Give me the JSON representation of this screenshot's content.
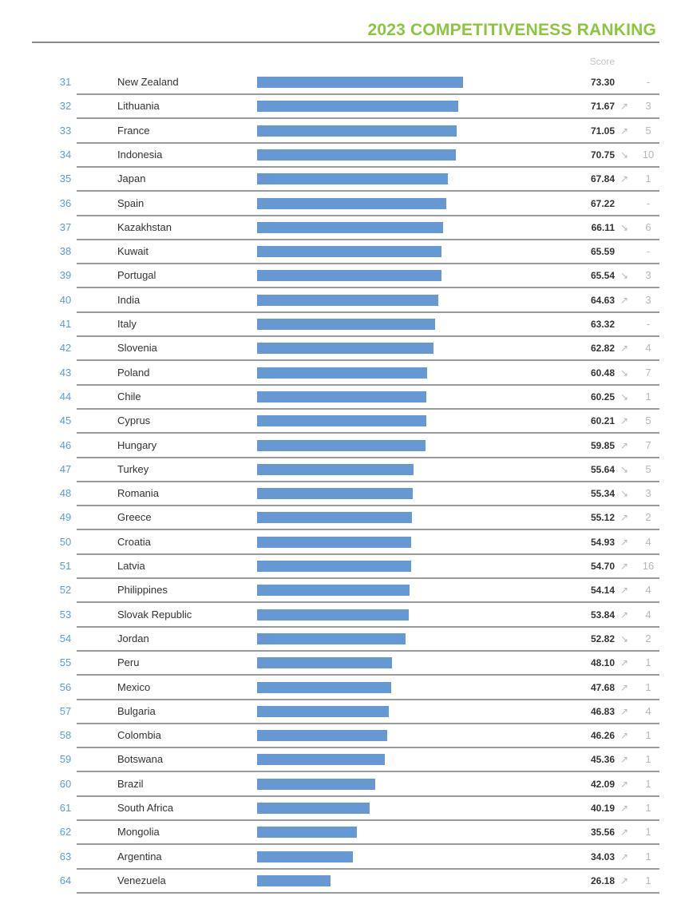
{
  "header": {
    "title": "2023 COMPETITIVENESS RANKING",
    "score_label": "Score"
  },
  "colors": {
    "title": "#8cc63f",
    "bar": "#6699d4",
    "rank": "#5b9bd5",
    "trend": "#b8b8b8"
  },
  "icons": {
    "up": "trend-up-icon",
    "down": "trend-down-icon"
  },
  "chart_data": {
    "type": "bar",
    "orientation": "horizontal",
    "title": "2023 COMPETITIVENESS RANKING",
    "xlim": [
      0,
      100
    ],
    "grid": false,
    "rows": [
      {
        "rank": "31",
        "country": "New Zealand",
        "score": "73.30",
        "value": 73.3,
        "trend": "",
        "change": "-"
      },
      {
        "rank": "32",
        "country": "Lithuania",
        "score": "71.67",
        "value": 71.67,
        "trend": "up",
        "change": "3"
      },
      {
        "rank": "33",
        "country": "France",
        "score": "71.05",
        "value": 71.05,
        "trend": "up",
        "change": "5"
      },
      {
        "rank": "34",
        "country": "Indonesia",
        "score": "70.75",
        "value": 70.75,
        "trend": "down",
        "change": "10"
      },
      {
        "rank": "35",
        "country": "Japan",
        "score": "67.84",
        "value": 67.84,
        "trend": "up",
        "change": "1"
      },
      {
        "rank": "36",
        "country": "Spain",
        "score": "67.22",
        "value": 67.22,
        "trend": "",
        "change": "-"
      },
      {
        "rank": "37",
        "country": "Kazakhstan",
        "score": "66.11",
        "value": 66.11,
        "trend": "down",
        "change": "6"
      },
      {
        "rank": "38",
        "country": "Kuwait",
        "score": "65.59",
        "value": 65.59,
        "trend": "",
        "change": "-"
      },
      {
        "rank": "39",
        "country": "Portugal",
        "score": "65.54",
        "value": 65.54,
        "trend": "down",
        "change": "3"
      },
      {
        "rank": "40",
        "country": "India",
        "score": "64.63",
        "value": 64.63,
        "trend": "up",
        "change": "3"
      },
      {
        "rank": "41",
        "country": "Italy",
        "score": "63.32",
        "value": 63.32,
        "trend": "",
        "change": "-"
      },
      {
        "rank": "42",
        "country": "Slovenia",
        "score": "62.82",
        "value": 62.82,
        "trend": "up",
        "change": "4"
      },
      {
        "rank": "43",
        "country": "Poland",
        "score": "60.48",
        "value": 60.48,
        "trend": "down",
        "change": "7"
      },
      {
        "rank": "44",
        "country": "Chile",
        "score": "60.25",
        "value": 60.25,
        "trend": "down",
        "change": "1"
      },
      {
        "rank": "45",
        "country": "Cyprus",
        "score": "60.21",
        "value": 60.21,
        "trend": "up",
        "change": "5"
      },
      {
        "rank": "46",
        "country": "Hungary",
        "score": "59.85",
        "value": 59.85,
        "trend": "up",
        "change": "7"
      },
      {
        "rank": "47",
        "country": "Turkey",
        "score": "55.64",
        "value": 55.64,
        "trend": "down",
        "change": "5"
      },
      {
        "rank": "48",
        "country": "Romania",
        "score": "55.34",
        "value": 55.34,
        "trend": "down",
        "change": "3"
      },
      {
        "rank": "49",
        "country": "Greece",
        "score": "55.12",
        "value": 55.12,
        "trend": "up",
        "change": "2"
      },
      {
        "rank": "50",
        "country": "Croatia",
        "score": "54.93",
        "value": 54.93,
        "trend": "up",
        "change": "4"
      },
      {
        "rank": "51",
        "country": "Latvia",
        "score": "54.70",
        "value": 54.7,
        "trend": "up",
        "change": "16"
      },
      {
        "rank": "52",
        "country": "Philippines",
        "score": "54.14",
        "value": 54.14,
        "trend": "up",
        "change": "4"
      },
      {
        "rank": "53",
        "country": "Slovak Republic",
        "score": "53.84",
        "value": 53.84,
        "trend": "up",
        "change": "4"
      },
      {
        "rank": "54",
        "country": "Jordan",
        "score": "52.82",
        "value": 52.82,
        "trend": "down",
        "change": "2"
      },
      {
        "rank": "55",
        "country": "Peru",
        "score": "48.10",
        "value": 48.1,
        "trend": "up",
        "change": "1"
      },
      {
        "rank": "56",
        "country": "Mexico",
        "score": "47.68",
        "value": 47.68,
        "trend": "up",
        "change": "1"
      },
      {
        "rank": "57",
        "country": "Bulgaria",
        "score": "46.83",
        "value": 46.83,
        "trend": "up",
        "change": "4"
      },
      {
        "rank": "58",
        "country": "Colombia",
        "score": "46.26",
        "value": 46.26,
        "trend": "up",
        "change": "1"
      },
      {
        "rank": "59",
        "country": "Botswana",
        "score": "45.36",
        "value": 45.36,
        "trend": "up",
        "change": "1"
      },
      {
        "rank": "60",
        "country": "Brazil",
        "score": "42.09",
        "value": 42.09,
        "trend": "up",
        "change": "1"
      },
      {
        "rank": "61",
        "country": "South Africa",
        "score": "40.19",
        "value": 40.19,
        "trend": "up",
        "change": "1"
      },
      {
        "rank": "62",
        "country": "Mongolia",
        "score": "35.56",
        "value": 35.56,
        "trend": "up",
        "change": "1"
      },
      {
        "rank": "63",
        "country": "Argentina",
        "score": "34.03",
        "value": 34.03,
        "trend": "up",
        "change": "1"
      },
      {
        "rank": "64",
        "country": "Venezuela",
        "score": "26.18",
        "value": 26.18,
        "trend": "up",
        "change": "1"
      }
    ]
  }
}
